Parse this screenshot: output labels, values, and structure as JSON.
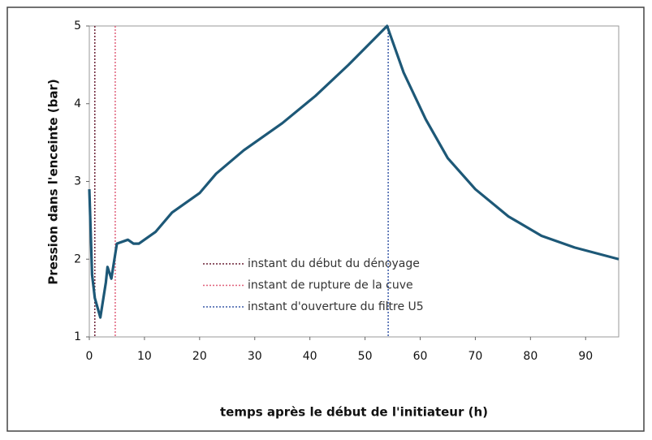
{
  "chart_data": {
    "type": "line",
    "xlabel": "temps après le début de l'initiateur (h)",
    "ylabel": "Pression dans l'enceinte (bar)",
    "xlim": [
      0,
      96
    ],
    "xticks": [
      0,
      10,
      20,
      30,
      40,
      50,
      60,
      70,
      80,
      90
    ],
    "ylim": [
      1,
      5
    ],
    "yticks": [
      1,
      2,
      3,
      4,
      5
    ],
    "series": [
      {
        "name": "Pression",
        "color": "#1d5877",
        "x": [
          0,
          0.5,
          1,
          2,
          3,
          3.3,
          4,
          5,
          7,
          8,
          9,
          12,
          15,
          20,
          23,
          28,
          35,
          41,
          47,
          54,
          57,
          61,
          65,
          70,
          76,
          82,
          88,
          96
        ],
        "values": [
          2.9,
          1.8,
          1.5,
          1.25,
          1.7,
          1.9,
          1.75,
          2.2,
          2.25,
          2.2,
          2.2,
          2.35,
          2.6,
          2.85,
          3.1,
          3.4,
          3.75,
          4.1,
          4.5,
          5.0,
          4.4,
          3.8,
          3.3,
          2.9,
          2.55,
          2.3,
          2.15,
          2.0
        ]
      }
    ],
    "vlines": [
      {
        "name": "instant du début du dénoyage",
        "x": 1,
        "color": "#6a2035"
      },
      {
        "name": "instant de rupture de la cuve",
        "x": 4.7,
        "color": "#e0607a"
      },
      {
        "name": "instant d'ouverture du filtre U5",
        "x": 54.2,
        "color": "#3a5aa8"
      }
    ]
  }
}
